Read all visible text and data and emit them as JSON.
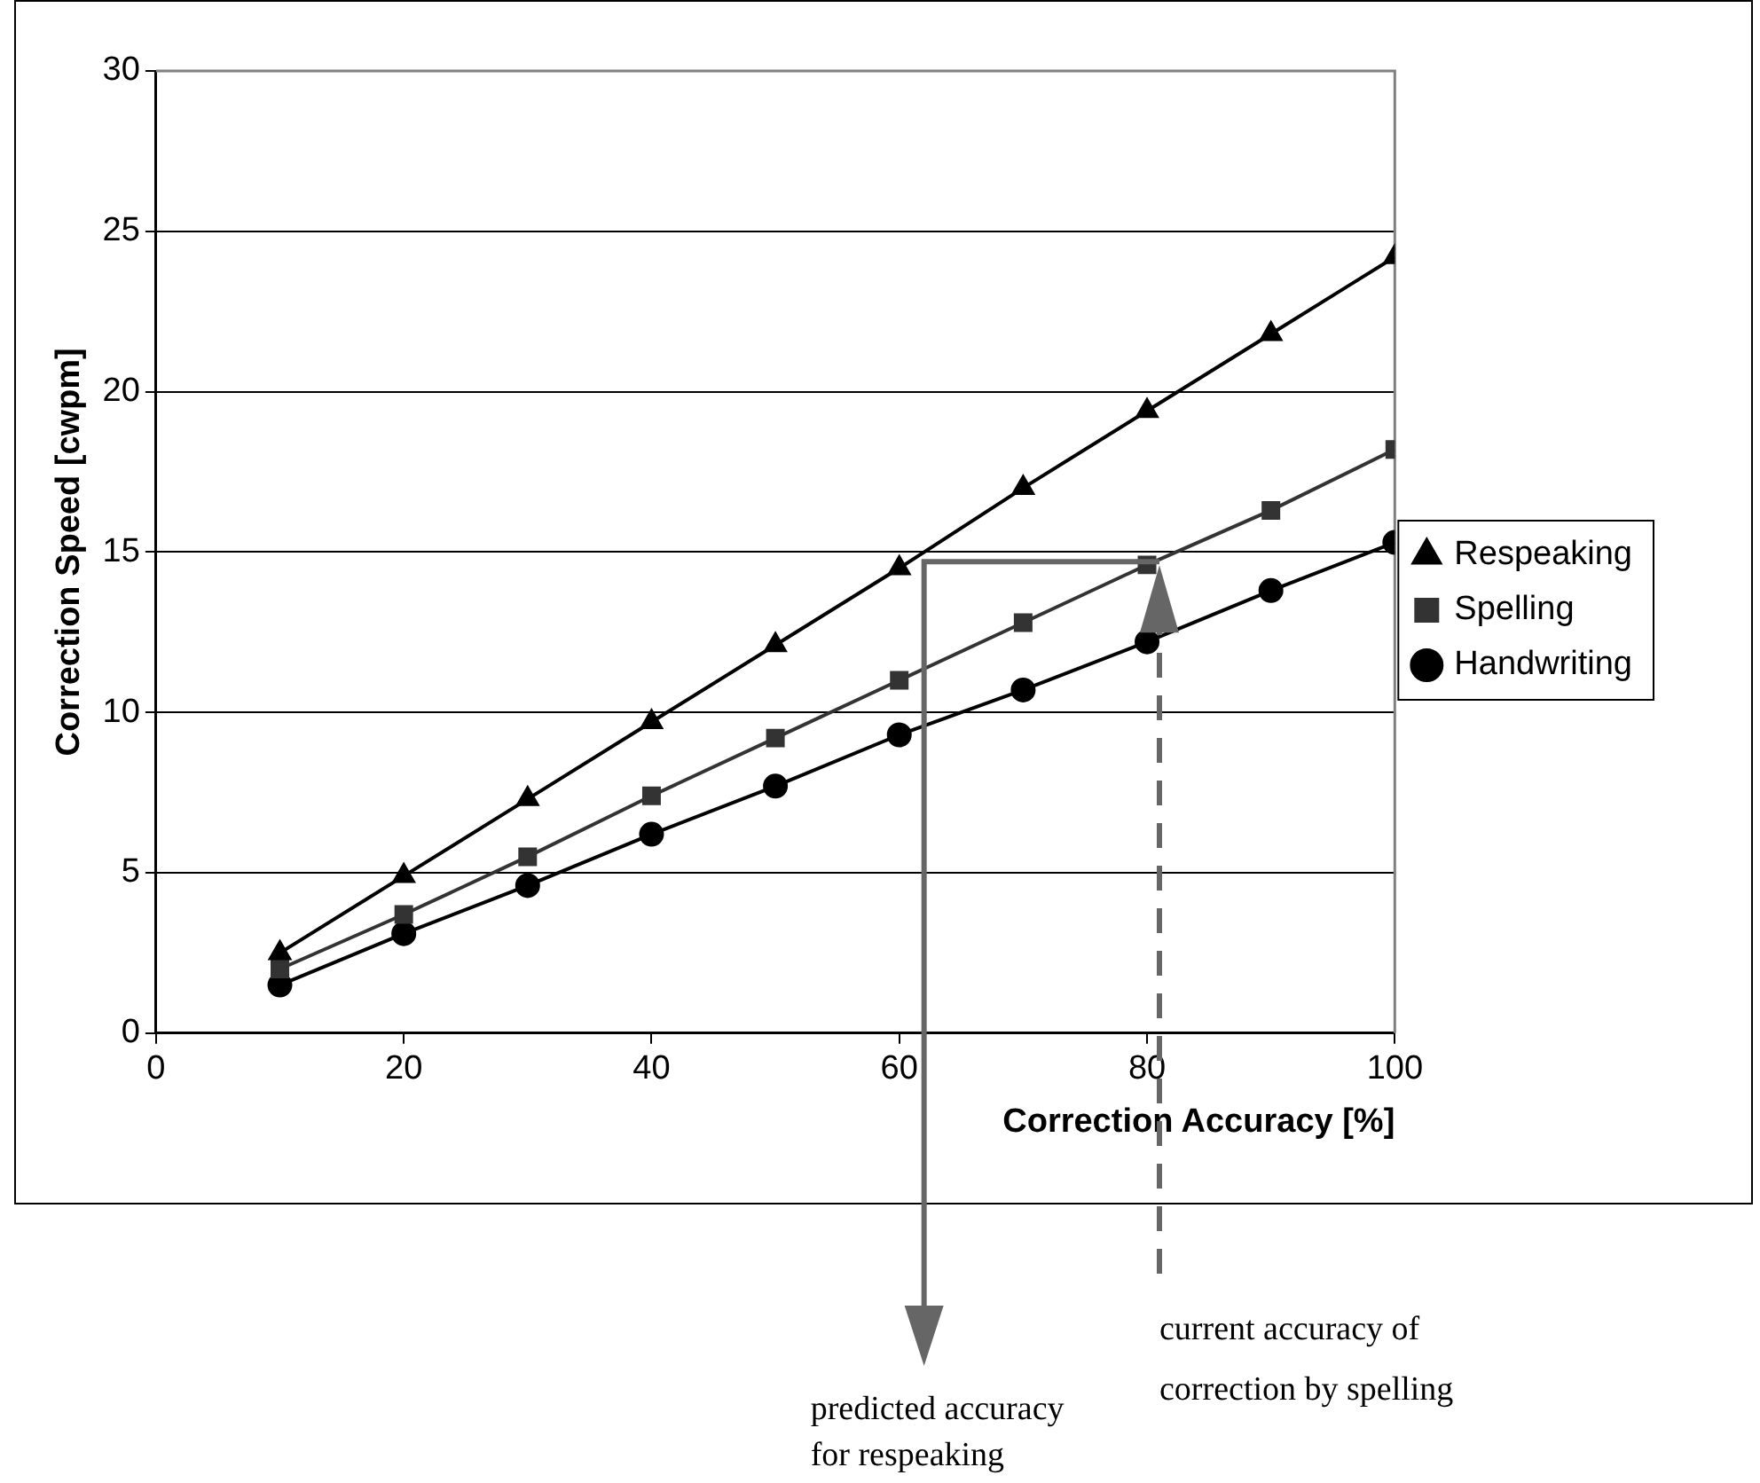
{
  "chart_data": {
    "type": "line",
    "xlabel": "Correction Accuracy [%]",
    "ylabel": "Correction Speed [cwpm]",
    "x": [
      10,
      20,
      30,
      40,
      50,
      60,
      70,
      80,
      90,
      100
    ],
    "series": [
      {
        "name": "Respeaking",
        "color": "#000000",
        "marker": "triangle",
        "values": [
          2.5,
          4.9,
          7.3,
          9.7,
          12.1,
          14.5,
          17.0,
          19.4,
          21.8,
          24.2
        ]
      },
      {
        "name": "Spelling",
        "color": "#333333",
        "marker": "square",
        "values": [
          2.0,
          3.7,
          5.5,
          7.4,
          9.2,
          11.0,
          12.8,
          14.6,
          16.3,
          18.2
        ]
      },
      {
        "name": "Handwriting",
        "color": "#000000",
        "marker": "circle",
        "values": [
          1.5,
          3.1,
          4.6,
          6.2,
          7.7,
          9.3,
          10.7,
          12.2,
          13.8,
          15.3
        ]
      }
    ],
    "xlim": [
      0,
      100
    ],
    "xticks": [
      0,
      20,
      40,
      60,
      80,
      100
    ],
    "ylim": [
      0,
      30
    ],
    "yticks": [
      0,
      5,
      10,
      15,
      20,
      25,
      30
    ],
    "grid": "y",
    "legend": "right",
    "annotations": [
      "predicted accuracy for respeaking",
      "current accuracy of correction by spelling"
    ]
  }
}
